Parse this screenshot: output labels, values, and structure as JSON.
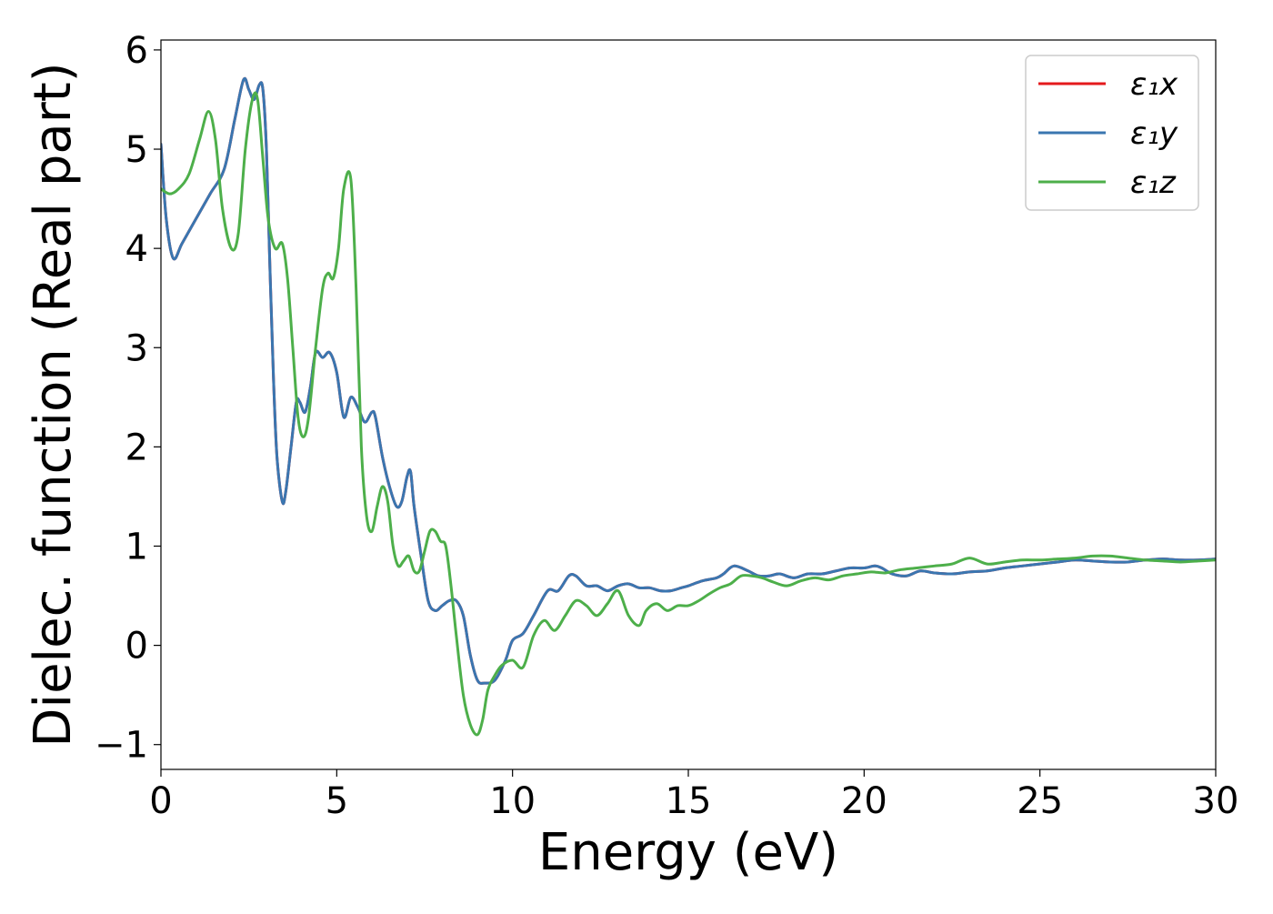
{
  "chart_data": {
    "type": "line",
    "title": "",
    "xlabel": "Energy (eV)",
    "ylabel": "Dielec. function (Real part)",
    "xlim": [
      0,
      30
    ],
    "ylim": [
      -1.25,
      6.1
    ],
    "xticks": [
      0,
      5,
      10,
      15,
      20,
      25,
      30
    ],
    "xtick_labels": [
      "0",
      "5",
      "10",
      "15",
      "20",
      "25",
      "30"
    ],
    "yticks": [
      -1,
      0,
      1,
      2,
      3,
      4,
      5,
      6
    ],
    "ytick_labels": [
      "−1",
      "0",
      "1",
      "2",
      "3",
      "4",
      "5",
      "6"
    ],
    "grid": false,
    "legend_position": "top-right",
    "series": [
      {
        "name": "ε₁x",
        "color": "#e41a1c",
        "x": [
          0,
          0.15,
          0.35,
          0.6,
          1.0,
          1.4,
          1.8,
          2.1,
          2.35,
          2.5,
          2.65,
          2.8,
          2.9,
          3.0,
          3.1,
          3.2,
          3.3,
          3.45,
          3.55,
          3.7,
          3.85,
          3.95,
          4.1,
          4.25,
          4.4,
          4.6,
          4.8,
          5.0,
          5.2,
          5.4,
          5.6,
          5.8,
          6.0,
          6.1,
          6.3,
          6.5,
          6.7,
          6.85,
          7.0,
          7.1,
          7.2,
          7.4,
          7.6,
          7.8,
          8.0,
          8.2,
          8.4,
          8.6,
          8.8,
          9.0,
          9.2,
          9.5,
          9.8,
          10.0,
          10.3,
          10.6,
          11.0,
          11.3,
          11.6,
          11.8,
          12.1,
          12.4,
          12.7,
          13.0,
          13.3,
          13.6,
          13.9,
          14.2,
          14.5,
          14.8,
          15.0,
          15.4,
          15.8,
          16.0,
          16.3,
          16.7,
          17.0,
          17.3,
          17.6,
          18.0,
          18.4,
          18.8,
          19.2,
          19.6,
          20.0,
          20.3,
          20.5,
          20.8,
          21.2,
          21.6,
          22.0,
          22.5,
          23.0,
          23.5,
          24.0,
          24.5,
          25.0,
          25.5,
          26.0,
          26.5,
          27.0,
          27.5,
          28.0,
          28.5,
          29.0,
          29.5,
          30.0
        ],
        "y": [
          5.05,
          4.3,
          3.9,
          4.05,
          4.3,
          4.55,
          4.8,
          5.3,
          5.7,
          5.6,
          5.5,
          5.65,
          5.6,
          5.0,
          3.8,
          2.7,
          1.9,
          1.45,
          1.55,
          2.0,
          2.45,
          2.45,
          2.35,
          2.6,
          2.95,
          2.9,
          2.95,
          2.75,
          2.3,
          2.5,
          2.4,
          2.25,
          2.35,
          2.3,
          1.9,
          1.6,
          1.4,
          1.45,
          1.7,
          1.75,
          1.4,
          0.9,
          0.45,
          0.35,
          0.4,
          0.45,
          0.45,
          0.3,
          -0.1,
          -0.35,
          -0.38,
          -0.35,
          -0.15,
          0.05,
          0.12,
          0.3,
          0.55,
          0.55,
          0.7,
          0.7,
          0.6,
          0.6,
          0.55,
          0.6,
          0.62,
          0.58,
          0.58,
          0.55,
          0.55,
          0.58,
          0.6,
          0.65,
          0.68,
          0.72,
          0.8,
          0.75,
          0.7,
          0.7,
          0.72,
          0.68,
          0.72,
          0.72,
          0.75,
          0.78,
          0.78,
          0.8,
          0.78,
          0.72,
          0.7,
          0.75,
          0.73,
          0.72,
          0.74,
          0.75,
          0.78,
          0.8,
          0.82,
          0.84,
          0.86,
          0.85,
          0.84,
          0.84,
          0.86,
          0.87,
          0.86,
          0.86,
          0.87
        ]
      },
      {
        "name": "ε₁y",
        "color": "#3a76b0",
        "x": [
          0,
          0.15,
          0.35,
          0.6,
          1.0,
          1.4,
          1.8,
          2.1,
          2.35,
          2.5,
          2.65,
          2.8,
          2.9,
          3.0,
          3.1,
          3.2,
          3.3,
          3.45,
          3.55,
          3.7,
          3.85,
          3.95,
          4.1,
          4.25,
          4.4,
          4.6,
          4.8,
          5.0,
          5.2,
          5.4,
          5.6,
          5.8,
          6.0,
          6.1,
          6.3,
          6.5,
          6.7,
          6.85,
          7.0,
          7.1,
          7.2,
          7.4,
          7.6,
          7.8,
          8.0,
          8.2,
          8.4,
          8.6,
          8.8,
          9.0,
          9.2,
          9.5,
          9.8,
          10.0,
          10.3,
          10.6,
          11.0,
          11.3,
          11.6,
          11.8,
          12.1,
          12.4,
          12.7,
          13.0,
          13.3,
          13.6,
          13.9,
          14.2,
          14.5,
          14.8,
          15.0,
          15.4,
          15.8,
          16.0,
          16.3,
          16.7,
          17.0,
          17.3,
          17.6,
          18.0,
          18.4,
          18.8,
          19.2,
          19.6,
          20.0,
          20.3,
          20.5,
          20.8,
          21.2,
          21.6,
          22.0,
          22.5,
          23.0,
          23.5,
          24.0,
          24.5,
          25.0,
          25.5,
          26.0,
          26.5,
          27.0,
          27.5,
          28.0,
          28.5,
          29.0,
          29.5,
          30.0
        ],
        "y": [
          5.05,
          4.3,
          3.9,
          4.05,
          4.3,
          4.55,
          4.8,
          5.3,
          5.7,
          5.6,
          5.5,
          5.65,
          5.6,
          5.0,
          3.8,
          2.7,
          1.9,
          1.45,
          1.55,
          2.0,
          2.45,
          2.45,
          2.35,
          2.6,
          2.95,
          2.9,
          2.95,
          2.75,
          2.3,
          2.5,
          2.4,
          2.25,
          2.35,
          2.3,
          1.9,
          1.6,
          1.4,
          1.45,
          1.7,
          1.75,
          1.4,
          0.9,
          0.45,
          0.35,
          0.4,
          0.45,
          0.45,
          0.3,
          -0.1,
          -0.35,
          -0.38,
          -0.35,
          -0.15,
          0.05,
          0.12,
          0.3,
          0.55,
          0.55,
          0.7,
          0.7,
          0.6,
          0.6,
          0.55,
          0.6,
          0.62,
          0.58,
          0.58,
          0.55,
          0.55,
          0.58,
          0.6,
          0.65,
          0.68,
          0.72,
          0.8,
          0.75,
          0.7,
          0.7,
          0.72,
          0.68,
          0.72,
          0.72,
          0.75,
          0.78,
          0.78,
          0.8,
          0.78,
          0.72,
          0.7,
          0.75,
          0.73,
          0.72,
          0.74,
          0.75,
          0.78,
          0.8,
          0.82,
          0.84,
          0.86,
          0.85,
          0.84,
          0.84,
          0.86,
          0.87,
          0.86,
          0.86,
          0.87
        ]
      },
      {
        "name": "ε₁z",
        "color": "#4daf4a",
        "x": [
          0,
          0.25,
          0.5,
          0.8,
          1.1,
          1.35,
          1.55,
          1.75,
          2.0,
          2.2,
          2.4,
          2.6,
          2.75,
          2.9,
          3.05,
          3.25,
          3.45,
          3.6,
          3.75,
          3.9,
          4.05,
          4.2,
          4.4,
          4.6,
          4.75,
          4.9,
          5.05,
          5.2,
          5.4,
          5.55,
          5.7,
          5.85,
          6.0,
          6.15,
          6.3,
          6.45,
          6.6,
          6.75,
          6.9,
          7.05,
          7.2,
          7.35,
          7.5,
          7.65,
          7.8,
          7.95,
          8.1,
          8.25,
          8.4,
          8.6,
          8.8,
          9.0,
          9.15,
          9.3,
          9.5,
          9.7,
          10.0,
          10.3,
          10.6,
          10.9,
          11.2,
          11.5,
          11.8,
          12.1,
          12.4,
          12.7,
          13.0,
          13.3,
          13.6,
          13.8,
          14.1,
          14.4,
          14.7,
          15.0,
          15.3,
          15.6,
          15.9,
          16.2,
          16.5,
          16.8,
          17.1,
          17.4,
          17.8,
          18.2,
          18.6,
          19.0,
          19.4,
          19.8,
          20.2,
          20.6,
          21.0,
          21.5,
          22.0,
          22.5,
          23.0,
          23.5,
          24.0,
          24.5,
          25.0,
          25.5,
          26.0,
          26.5,
          27.0,
          27.5,
          28.0,
          28.5,
          29.0,
          29.5,
          30.0
        ],
        "y": [
          4.6,
          4.55,
          4.6,
          4.75,
          5.1,
          5.38,
          5.1,
          4.4,
          4.0,
          4.15,
          5.0,
          5.5,
          5.5,
          4.9,
          4.3,
          4.0,
          4.05,
          3.7,
          3.0,
          2.3,
          2.1,
          2.3,
          3.0,
          3.6,
          3.75,
          3.7,
          4.0,
          4.6,
          4.7,
          3.6,
          2.0,
          1.3,
          1.15,
          1.4,
          1.6,
          1.45,
          1.0,
          0.8,
          0.85,
          0.9,
          0.75,
          0.75,
          0.95,
          1.15,
          1.15,
          1.05,
          1.0,
          0.6,
          0.1,
          -0.5,
          -0.8,
          -0.9,
          -0.75,
          -0.45,
          -0.3,
          -0.2,
          -0.15,
          -0.22,
          0.1,
          0.25,
          0.15,
          0.3,
          0.45,
          0.4,
          0.3,
          0.42,
          0.55,
          0.3,
          0.2,
          0.35,
          0.42,
          0.35,
          0.4,
          0.4,
          0.45,
          0.52,
          0.58,
          0.62,
          0.7,
          0.7,
          0.68,
          0.64,
          0.6,
          0.65,
          0.68,
          0.66,
          0.7,
          0.72,
          0.74,
          0.73,
          0.76,
          0.78,
          0.8,
          0.82,
          0.88,
          0.82,
          0.84,
          0.86,
          0.86,
          0.87,
          0.88,
          0.9,
          0.9,
          0.88,
          0.86,
          0.85,
          0.84,
          0.85,
          0.86
        ]
      }
    ]
  }
}
